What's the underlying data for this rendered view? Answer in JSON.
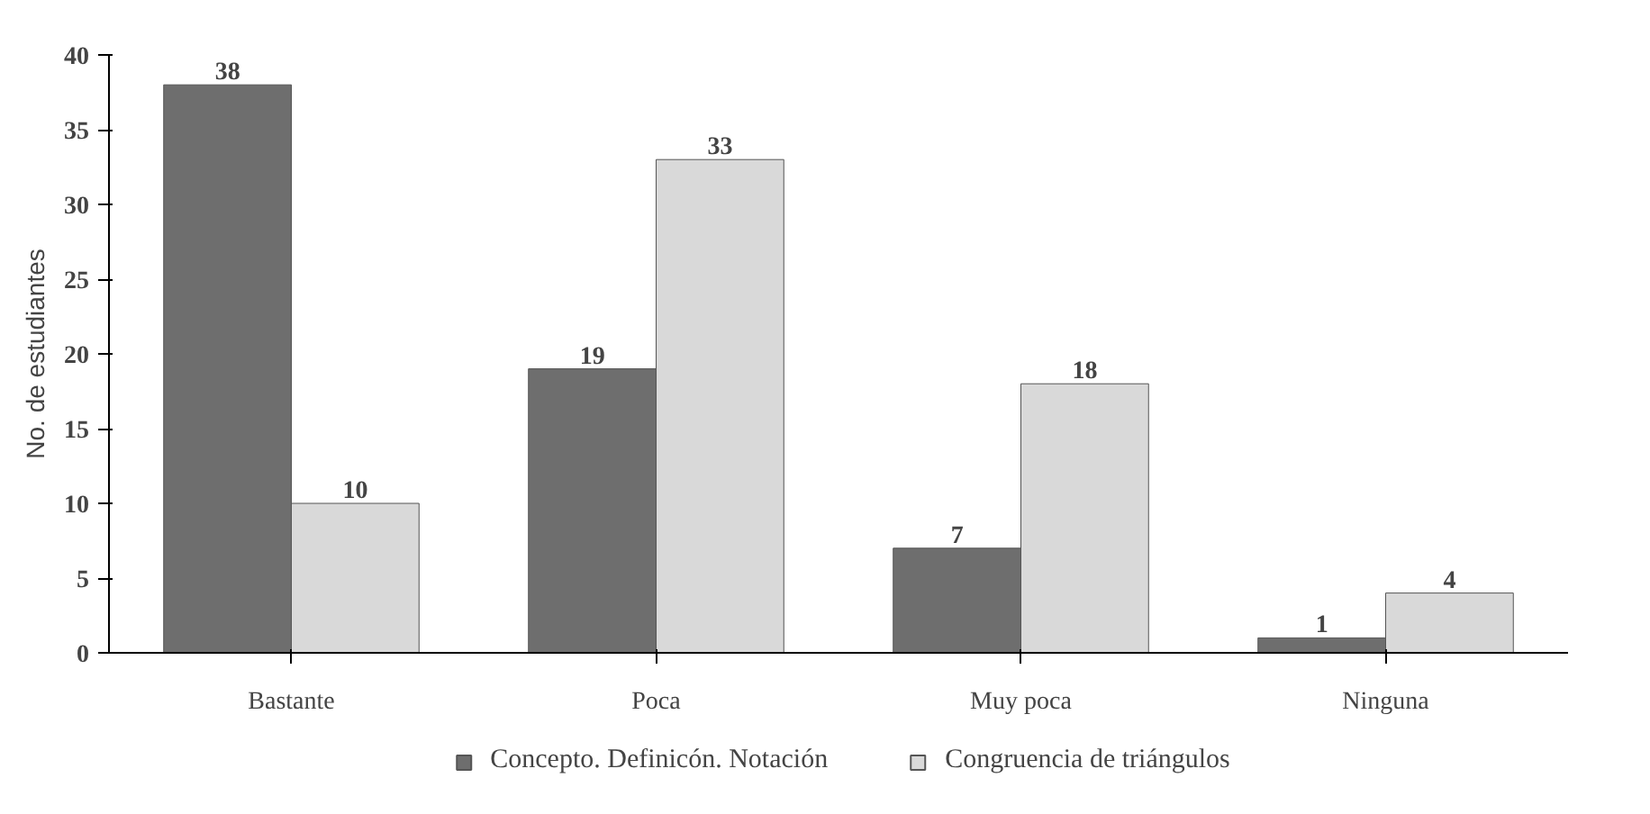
{
  "chart_data": {
    "type": "bar",
    "ylabel": "No. de estudiantes",
    "categories": [
      "Bastante",
      "Poca",
      "Muy poca",
      "Ninguna"
    ],
    "series": [
      {
        "name": "Concepto. Definicón. Notación",
        "color": "#6e6e6e",
        "values": [
          38,
          19,
          7,
          1
        ]
      },
      {
        "name": "Congruencia de triángulos",
        "color": "#d9d9d9",
        "values": [
          10,
          33,
          18,
          4
        ]
      }
    ],
    "ylim": [
      0,
      40
    ],
    "yticks": [
      0,
      5,
      10,
      15,
      20,
      25,
      30,
      35,
      40
    ],
    "data_labels": true,
    "grid": false,
    "legend": "bottom"
  }
}
